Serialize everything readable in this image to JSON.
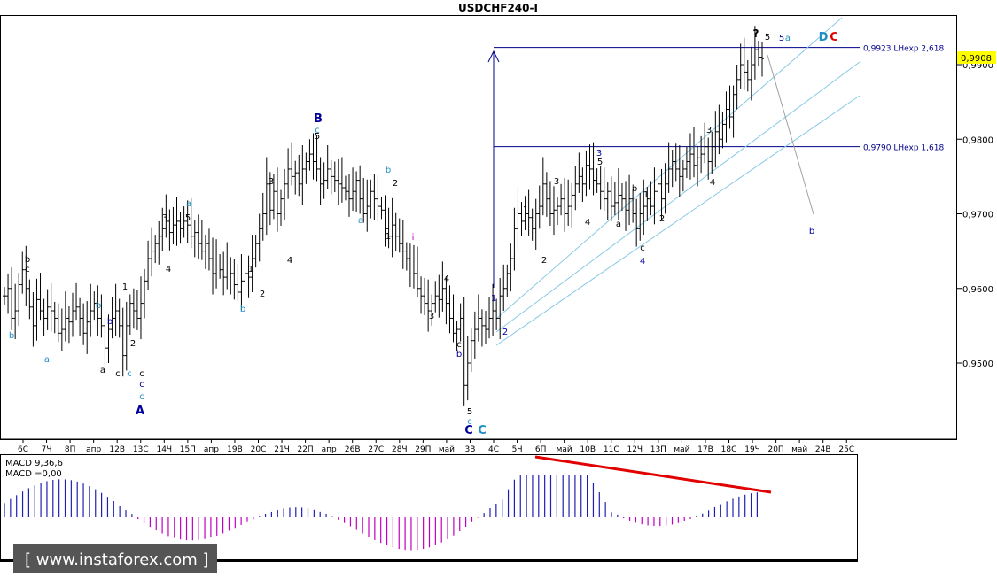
{
  "title": "USDCHF240-I",
  "watermark": "[ www.instaforex.com ]",
  "price_tag": "0,9908",
  "colors": {
    "bar": "#000000",
    "wave_blue": "#00009c",
    "wave_cyan": "#1e8fc4",
    "wave_black": "#000000",
    "wave_red": "#e00000",
    "wave_magenta": "#c000c0",
    "level_line": "#00008b",
    "channel": "#87c8e6",
    "macd_pos": "#2020b0",
    "macd_neg": "#c000c0",
    "divergence": "#e00000",
    "price_tag_bg": "#ffff00"
  },
  "price_axis": {
    "ticks": [
      "0,9900",
      "0,9800",
      "0,9700",
      "0,9600",
      "0,9500"
    ]
  },
  "time_axis": {
    "ticks": [
      "6C",
      "7Ч",
      "8П",
      "апр",
      "12В",
      "13C",
      "14Ч",
      "15П",
      "апр",
      "19В",
      "20C",
      "21Ч",
      "22П",
      "апр",
      "26В",
      "27C",
      "28Ч",
      "29П",
      "май",
      "3В",
      "4C",
      "5Ч",
      "6П",
      "май",
      "10В",
      "11C",
      "12Ч",
      "13П",
      "май",
      "17В",
      "18C",
      "19Ч",
      "20П",
      "май",
      "24В",
      "25C"
    ]
  },
  "levels": [
    {
      "label": "0,9923 LНexp 2,618"
    },
    {
      "label": "0,9790 LНexp 1,618"
    }
  ],
  "wave_labels": [
    {
      "text": "b",
      "c": "wave_black"
    },
    {
      "text": "c",
      "c": "wave_black"
    },
    {
      "text": "b",
      "c": "wave_cyan"
    },
    {
      "text": "a",
      "c": "wave_cyan"
    },
    {
      "text": "b",
      "c": "wave_cyan"
    },
    {
      "text": "a",
      "c": "wave_black"
    },
    {
      "text": "c",
      "c": "wave_black"
    },
    {
      "text": "b",
      "c": "wave_blue"
    },
    {
      "text": "c",
      "c": "wave_cyan"
    },
    {
      "text": "c",
      "c": "wave_black"
    },
    {
      "text": "c",
      "c": "wave_blue"
    },
    {
      "text": "c",
      "c": "wave_cyan"
    },
    {
      "text": "A",
      "c": "wave_blue"
    },
    {
      "text": "1",
      "c": "wave_black"
    },
    {
      "text": "2",
      "c": "wave_black"
    },
    {
      "text": "3",
      "c": "wave_black"
    },
    {
      "text": "4",
      "c": "wave_black"
    },
    {
      "text": "5",
      "c": "wave_black"
    },
    {
      "text": "a",
      "c": "wave_cyan"
    },
    {
      "text": "1",
      "c": "wave_black"
    },
    {
      "text": "b",
      "c": "wave_cyan"
    },
    {
      "text": "2",
      "c": "wave_black"
    },
    {
      "text": "3",
      "c": "wave_black"
    },
    {
      "text": "4",
      "c": "wave_black"
    },
    {
      "text": "B",
      "c": "wave_blue"
    },
    {
      "text": "c",
      "c": "wave_cyan"
    },
    {
      "text": "5",
      "c": "wave_black"
    },
    {
      "text": "a",
      "c": "wave_cyan"
    },
    {
      "text": "b",
      "c": "wave_cyan"
    },
    {
      "text": "1",
      "c": "wave_black"
    },
    {
      "text": "2",
      "c": "wave_black"
    },
    {
      "text": "3",
      "c": "wave_black"
    },
    {
      "text": "4",
      "c": "wave_black"
    },
    {
      "text": "c",
      "c": "wave_black"
    },
    {
      "text": "b",
      "c": "wave_blue"
    },
    {
      "text": "5",
      "c": "wave_black"
    },
    {
      "text": "c",
      "c": "wave_cyan"
    },
    {
      "text": "C",
      "c": "wave_blue"
    },
    {
      "text": "C",
      "c": "wave_cyan"
    },
    {
      "text": "1",
      "c": "wave_blue"
    },
    {
      "text": "2",
      "c": "wave_blue"
    },
    {
      "text": "1",
      "c": "wave_black"
    },
    {
      "text": "2",
      "c": "wave_black"
    },
    {
      "text": "3",
      "c": "wave_black"
    },
    {
      "text": "4",
      "c": "wave_black"
    },
    {
      "text": "3",
      "c": "wave_blue"
    },
    {
      "text": "5",
      "c": "wave_black"
    },
    {
      "text": "a",
      "c": "wave_black"
    },
    {
      "text": "b",
      "c": "wave_black"
    },
    {
      "text": "c",
      "c": "wave_black"
    },
    {
      "text": "4",
      "c": "wave_blue"
    },
    {
      "text": "1",
      "c": "wave_black"
    },
    {
      "text": "2",
      "c": "wave_black"
    },
    {
      "text": "3",
      "c": "wave_black"
    },
    {
      "text": "4",
      "c": "wave_black"
    },
    {
      "text": "?",
      "c": "wave_black"
    },
    {
      "text": "5",
      "c": "wave_black"
    },
    {
      "text": "5",
      "c": "wave_blue"
    },
    {
      "text": "a",
      "c": "wave_cyan"
    },
    {
      "text": "D",
      "c": "wave_cyan"
    },
    {
      "text": "C",
      "c": "wave_red"
    },
    {
      "text": "b",
      "c": "wave_blue"
    },
    {
      "text": "i",
      "c": "wave_magenta"
    }
  ],
  "macd": {
    "label": "MACD 9,36,6",
    "value_label": "MACD =0,00"
  },
  "chart_data": {
    "type": "candlestick",
    "title": "USDCHF240-I",
    "timeframe": "H4",
    "price_range": [
      0.942,
      0.996
    ],
    "current_price": 0.9908,
    "ohlc_closes": [
      0.959,
      0.96,
      0.956,
      0.957,
      0.9605,
      0.9625,
      0.96,
      0.9575,
      0.955,
      0.9585,
      0.957,
      0.956,
      0.9575,
      0.957,
      0.956,
      0.954,
      0.9545,
      0.956,
      0.9555,
      0.957,
      0.9575,
      0.956,
      0.954,
      0.9555,
      0.957,
      0.958,
      0.956,
      0.955,
      0.952,
      0.9545,
      0.956,
      0.957,
      0.955,
      0.951,
      0.955,
      0.958,
      0.957,
      0.956,
      0.958,
      0.961,
      0.964,
      0.965,
      0.966,
      0.967,
      0.968,
      0.969,
      0.9675,
      0.9685,
      0.969,
      0.968,
      0.969,
      0.9685,
      0.967,
      0.9675,
      0.966,
      0.965,
      0.966,
      0.964,
      0.962,
      0.963,
      0.9625,
      0.9615,
      0.963,
      0.962,
      0.9605,
      0.9595,
      0.961,
      0.962,
      0.9615,
      0.964,
      0.966,
      0.968,
      0.97,
      0.974,
      0.9705,
      0.973,
      0.97,
      0.972,
      0.974,
      0.976,
      0.975,
      0.9755,
      0.974,
      0.976,
      0.977,
      0.978,
      0.977,
      0.976,
      0.974,
      0.9745,
      0.976,
      0.975,
      0.9745,
      0.974,
      0.9735,
      0.973,
      0.972,
      0.973,
      0.9745,
      0.972,
      0.97,
      0.971,
      0.973,
      0.972,
      0.971,
      0.9705,
      0.968,
      0.967,
      0.9685,
      0.967,
      0.966,
      0.965,
      0.964,
      0.963,
      0.962,
      0.96,
      0.959,
      0.958,
      0.957,
      0.958,
      0.959,
      0.9585,
      0.96,
      0.958,
      0.956,
      0.954,
      0.9545,
      0.956,
      0.947,
      0.95,
      0.953,
      0.9545,
      0.956,
      0.955,
      0.9545,
      0.956,
      0.957,
      0.956,
      0.959,
      0.96,
      0.962,
      0.964,
      0.968,
      0.97,
      0.969,
      0.97,
      0.9695,
      0.968,
      0.97,
      0.971,
      0.974,
      0.972,
      0.97,
      0.9705,
      0.971,
      0.972,
      0.97,
      0.971,
      0.9725,
      0.974,
      0.975,
      0.974,
      0.9765,
      0.976,
      0.9745,
      0.974,
      0.973,
      0.972,
      0.973,
      0.971,
      0.9715,
      0.9725,
      0.972,
      0.9705,
      0.972,
      0.97,
      0.968,
      0.97,
      0.971,
      0.972,
      0.971,
      0.973,
      0.974,
      0.972,
      0.974,
      0.976,
      0.977,
      0.976,
      0.975,
      0.976,
      0.977,
      0.978,
      0.9765,
      0.9775,
      0.978,
      0.979,
      0.977,
      0.979,
      0.981,
      0.98,
      0.982,
      0.984,
      0.983,
      0.986,
      0.988,
      0.99,
      0.989,
      0.988,
      0.99,
      0.992,
      0.991,
      0.9908
    ],
    "levels": [
      {
        "value": 0.9923,
        "label": "0,9923 LНexp 2,618"
      },
      {
        "value": 0.979,
        "label": "0,9790 LНexp 1,618"
      }
    ],
    "macd": {
      "params": "9,36,6",
      "value": 0.0
    }
  }
}
